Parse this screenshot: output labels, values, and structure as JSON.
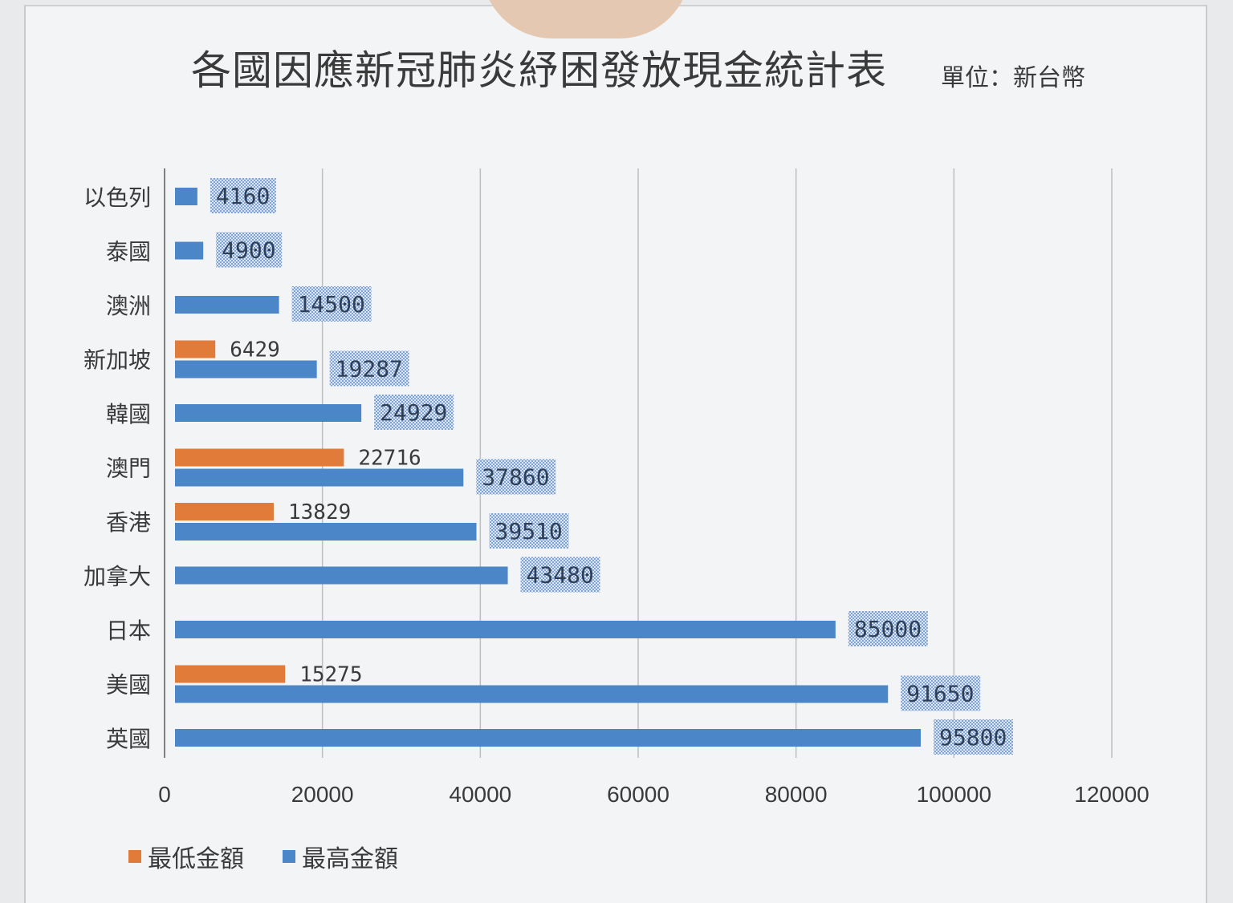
{
  "chart_data": {
    "type": "bar",
    "orientation": "horizontal",
    "title": "各國因應新冠肺炎紓困發放現金統計表",
    "unit_label": "單位：新台幣",
    "categories": [
      "以色列",
      "泰國",
      "澳洲",
      "新加坡",
      "韓國",
      "澳門",
      "香港",
      "加拿大",
      "日本",
      "美國",
      "英國"
    ],
    "series": [
      {
        "name": "最低金額",
        "color": "#e07b39",
        "values": [
          null,
          null,
          null,
          6429,
          null,
          22716,
          13829,
          null,
          null,
          15275,
          null
        ],
        "labels": [
          "",
          "",
          "",
          "6429",
          "",
          "22716",
          "13829",
          "",
          "",
          "15275",
          ""
        ]
      },
      {
        "name": "最高金額",
        "color": "#4a86c8",
        "values": [
          4160,
          4900,
          14500,
          19287,
          24929,
          37860,
          39510,
          43480,
          85000,
          91650,
          95800
        ],
        "labels": [
          "4160",
          "4900",
          "14500",
          "19287",
          "24929",
          "37860",
          "39510",
          "43480",
          "85000",
          "91650",
          "95800"
        ]
      }
    ],
    "xlim": [
      0,
      120000
    ],
    "x_ticks": [
      "0",
      "20000",
      "40000",
      "60000",
      "80000",
      "100000",
      "120000"
    ],
    "grid": true,
    "legend_position": "bottom-left"
  }
}
